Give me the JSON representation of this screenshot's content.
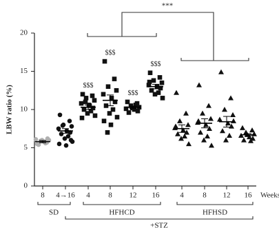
{
  "chart_data": {
    "type": "dot",
    "ylabel": "LBW ratio (%)",
    "ylim": [
      0,
      20
    ],
    "yticks": [
      0,
      5,
      10,
      15,
      20
    ],
    "x_unit_label": "Weeks",
    "group_labels": [
      "SD",
      "HFHCD",
      "HFHSD"
    ],
    "treatment_label": "+STZ",
    "significance": "***",
    "groups": [
      {
        "category": "8",
        "marker": "circle",
        "color": "#b0b0b0",
        "values": [
          5.5,
          5.7,
          5.9,
          6.0,
          6.1,
          5.8,
          6.2,
          5.4,
          5.6,
          6.0
        ],
        "mean": 5.8,
        "sem": 0.15
      },
      {
        "category": "4→16",
        "marker": "circle",
        "color": "#111111",
        "values": [
          9.3,
          8.5,
          8.0,
          7.8,
          7.5,
          7.2,
          7.0,
          6.8,
          6.5,
          6.2,
          5.8,
          5.5,
          5.3,
          7.9,
          6.0
        ],
        "mean": 7.2,
        "sem": 0.3
      },
      {
        "category": "4",
        "marker": "square",
        "color": "#111111",
        "values": [
          12.0,
          11.8,
          11.5,
          11.2,
          10.8,
          10.5,
          10.2,
          10.0,
          9.8,
          9.5,
          9.2,
          8.9,
          10.6,
          11.0
        ],
        "mean": 10.3,
        "sem": 0.3,
        "annotation": "$$$"
      },
      {
        "category": "8",
        "marker": "square",
        "color": "#111111",
        "values": [
          16.3,
          14.0,
          13.0,
          12.5,
          12.0,
          11.5,
          11.0,
          10.5,
          10.0,
          9.5,
          9.0,
          8.5,
          8.0,
          7.0
        ],
        "mean": 11.2,
        "sem": 0.7,
        "annotation": "$$$"
      },
      {
        "category": "12",
        "marker": "square",
        "color": "#111111",
        "values": [
          11.0,
          10.8,
          10.5,
          10.3,
          10.1,
          10.0,
          9.8,
          9.6,
          10.6,
          10.2
        ],
        "mean": 10.3,
        "sem": 0.15,
        "annotation": "$$$"
      },
      {
        "category": "16",
        "marker": "square",
        "color": "#111111",
        "values": [
          14.8,
          14.2,
          13.8,
          13.5,
          13.2,
          13.0,
          12.8,
          12.5,
          12.2,
          12.0,
          11.5,
          13.6
        ],
        "mean": 13.0,
        "sem": 0.3,
        "annotation": "$$$"
      },
      {
        "category": "4",
        "marker": "triangle",
        "color": "#111111",
        "values": [
          12.2,
          9.5,
          8.5,
          8.0,
          7.6,
          7.3,
          7.0,
          6.8,
          6.5,
          6.2,
          5.5,
          7.8
        ],
        "mean": 7.5,
        "sem": 0.5
      },
      {
        "category": "8",
        "marker": "triangle",
        "color": "#111111",
        "values": [
          13.2,
          10.5,
          9.5,
          8.8,
          8.3,
          8.0,
          7.5,
          7.0,
          6.5,
          6.0,
          5.3,
          8.5
        ],
        "mean": 8.2,
        "sem": 0.6
      },
      {
        "category": "12",
        "marker": "triangle",
        "color": "#111111",
        "values": [
          14.9,
          11.5,
          10.0,
          9.3,
          8.7,
          8.2,
          7.8,
          7.2,
          6.6,
          6.0,
          8.5
        ],
        "mean": 8.4,
        "sem": 0.7
      },
      {
        "category": "16",
        "marker": "triangle",
        "color": "#111111",
        "values": [
          7.6,
          7.3,
          7.0,
          6.8,
          6.6,
          6.4,
          6.2,
          6.0,
          5.9,
          6.7
        ],
        "mean": 6.7,
        "sem": 0.15
      }
    ]
  }
}
